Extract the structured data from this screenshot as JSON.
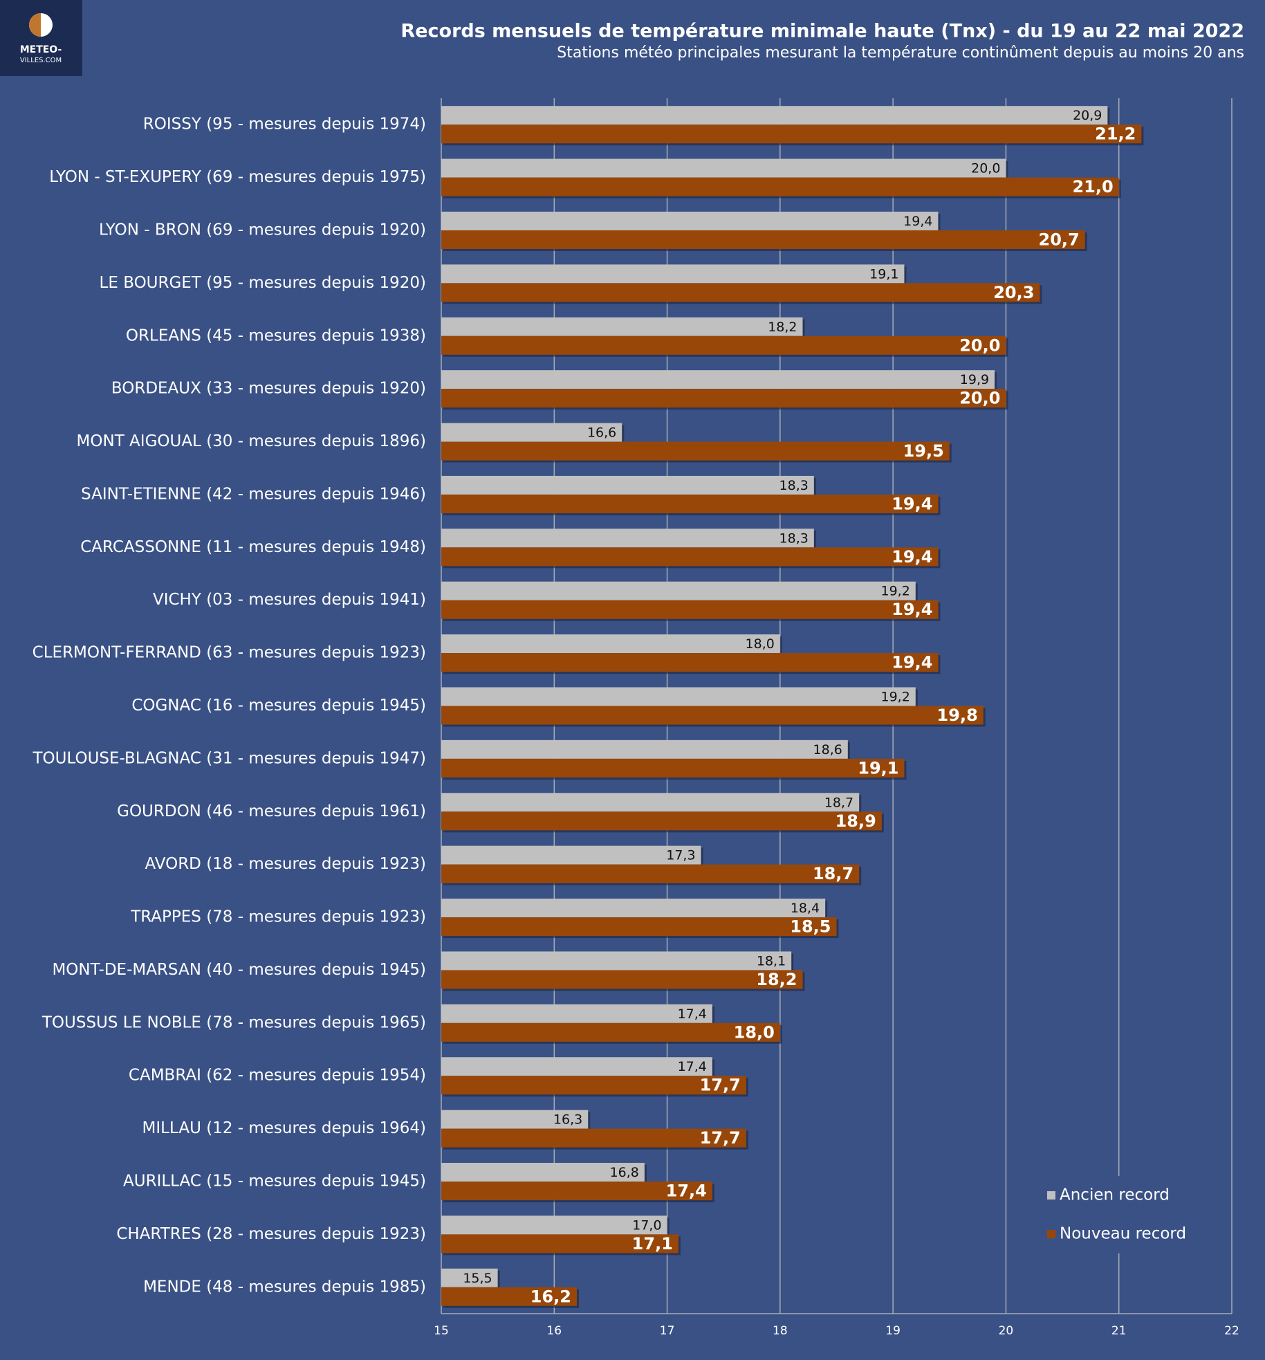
{
  "logo": {
    "line1": "METEO-",
    "line2": "VILLES.COM"
  },
  "chart_data": {
    "type": "hbar",
    "title": "Records mensuels de température minimale haute (Tnx) - du 19 au 22 mai 2022",
    "subtitle": "Stations météo principales mesurant la température continûment depuis au moins 20 ans",
    "categories": [
      "ROISSY (95 - mesures depuis 1974)",
      "LYON - ST-EXUPERY (69 - mesures depuis 1975)",
      "LYON - BRON (69 - mesures depuis 1920)",
      "LE BOURGET (95 - mesures depuis 1920)",
      "ORLEANS (45 - mesures depuis 1938)",
      "BORDEAUX (33 - mesures depuis 1920)",
      "MONT AIGOUAL (30 - mesures depuis 1896)",
      "SAINT-ETIENNE (42 - mesures depuis 1946)",
      "CARCASSONNE (11 - mesures depuis 1948)",
      "VICHY (03 - mesures depuis 1941)",
      "CLERMONT-FERRAND (63 - mesures depuis 1923)",
      "COGNAC (16 - mesures depuis 1945)",
      "TOULOUSE-BLAGNAC (31 - mesures depuis 1947)",
      "GOURDON (46 - mesures depuis 1961)",
      "AVORD (18 - mesures depuis 1923)",
      "TRAPPES (78 - mesures depuis 1923)",
      "MONT-DE-MARSAN (40 - mesures depuis 1945)",
      "TOUSSUS LE NOBLE (78 - mesures depuis 1965)",
      "CAMBRAI (62 - mesures depuis 1954)",
      "MILLAU (12 - mesures depuis 1964)",
      "AURILLAC (15 - mesures depuis 1945)",
      "CHARTRES (28 - mesures depuis 1923)",
      "MENDE (48 - mesures depuis 1985)"
    ],
    "series": [
      {
        "name": "Ancien record",
        "color": "#c0c0c0",
        "values": [
          20.9,
          20.0,
          19.4,
          19.1,
          18.2,
          19.9,
          16.6,
          18.3,
          18.3,
          19.2,
          18.0,
          19.2,
          18.6,
          18.7,
          17.3,
          18.4,
          18.1,
          17.4,
          17.4,
          16.3,
          16.8,
          17.0,
          15.5
        ],
        "value_labels": [
          "20,9",
          "20,0",
          "19,4",
          "19,1",
          "18,2",
          "19,9",
          "16,6",
          "18,3",
          "18,3",
          "19,2",
          "18,0",
          "19,2",
          "18,6",
          "18,7",
          "17,3",
          "18,4",
          "18,1",
          "17,4",
          "17,4",
          "16,3",
          "16,8",
          "17,0",
          "15,5"
        ]
      },
      {
        "name": "Nouveau record",
        "color": "#984709",
        "values": [
          21.2,
          21.0,
          20.7,
          20.3,
          20.0,
          20.0,
          19.5,
          19.4,
          19.4,
          19.4,
          19.4,
          19.8,
          19.1,
          18.9,
          18.7,
          18.5,
          18.2,
          18.0,
          17.7,
          17.7,
          17.4,
          17.1,
          16.2
        ],
        "value_labels": [
          "21,2",
          "21,0",
          "20,7",
          "20,3",
          "20,0",
          "20,0",
          "19,5",
          "19,4",
          "19,4",
          "19,4",
          "19,4",
          "19,8",
          "19,1",
          "18,9",
          "18,7",
          "18,5",
          "18,2",
          "18,0",
          "17,7",
          "17,7",
          "17,4",
          "17,1",
          "16,2"
        ]
      }
    ],
    "xlim": [
      15,
      22
    ],
    "xticks": [
      15,
      16,
      17,
      18,
      19,
      20,
      21,
      22
    ],
    "grid": true,
    "legend": "lower-right"
  }
}
